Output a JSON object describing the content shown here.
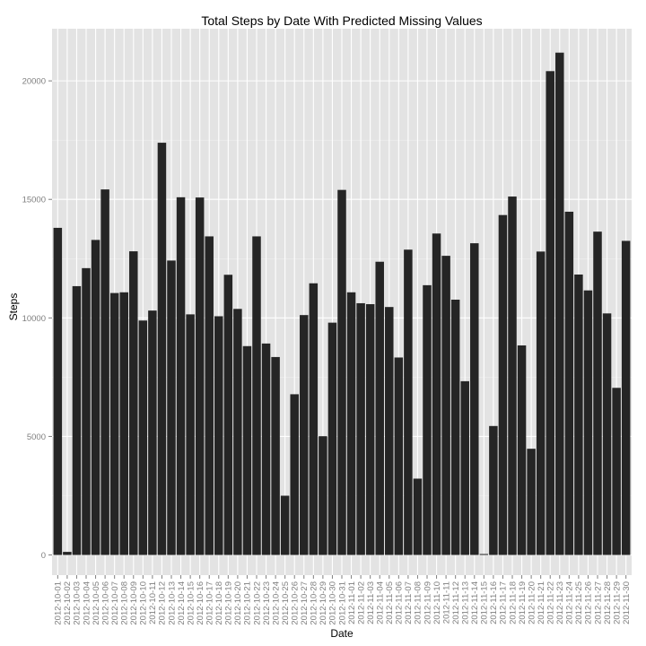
{
  "chart_data": {
    "type": "bar",
    "title": "Total Steps by Date With Predicted Missing Values",
    "xlabel": "Date",
    "ylabel": "Steps",
    "ylim": [
      -850,
      22200
    ],
    "yticks": [
      0,
      5000,
      10000,
      15000,
      20000
    ],
    "grid": true,
    "bar_color": "#252525",
    "panel_color": "#e3e3e3",
    "grid_color": "#ffffff",
    "categories": [
      "2012-10-01",
      "2012-10-02",
      "2012-10-03",
      "2012-10-04",
      "2012-10-05",
      "2012-10-06",
      "2012-10-07",
      "2012-10-08",
      "2012-10-09",
      "2012-10-10",
      "2012-10-11",
      "2012-10-12",
      "2012-10-13",
      "2012-10-14",
      "2012-10-15",
      "2012-10-16",
      "2012-10-17",
      "2012-10-18",
      "2012-10-19",
      "2012-10-20",
      "2012-10-21",
      "2012-10-22",
      "2012-10-23",
      "2012-10-24",
      "2012-10-25",
      "2012-10-26",
      "2012-10-27",
      "2012-10-28",
      "2012-10-29",
      "2012-10-30",
      "2012-10-31",
      "2012-11-01",
      "2012-11-02",
      "2012-11-03",
      "2012-11-04",
      "2012-11-05",
      "2012-11-06",
      "2012-11-07",
      "2012-11-08",
      "2012-11-09",
      "2012-11-10",
      "2012-11-11",
      "2012-11-12",
      "2012-11-13",
      "2012-11-14",
      "2012-11-15",
      "2012-11-16",
      "2012-11-17",
      "2012-11-18",
      "2012-11-19",
      "2012-11-20",
      "2012-11-21",
      "2012-11-22",
      "2012-11-23",
      "2012-11-24",
      "2012-11-25",
      "2012-11-26",
      "2012-11-27",
      "2012-11-28",
      "2012-11-29",
      "2012-11-30"
    ],
    "values": [
      13800,
      130,
      11340,
      12100,
      13290,
      15420,
      11050,
      11080,
      12810,
      9890,
      10310,
      17390,
      12420,
      15090,
      10150,
      15080,
      13440,
      10070,
      11820,
      10380,
      8810,
      13440,
      8920,
      8350,
      2500,
      6780,
      10120,
      11460,
      5010,
      9800,
      15400,
      11080,
      10620,
      10580,
      12370,
      10460,
      8330,
      12880,
      3220,
      11380,
      13560,
      12620,
      10770,
      7330,
      13150,
      40,
      5440,
      14340,
      15120,
      8840,
      4480,
      12800,
      20410,
      21190,
      14480,
      11830,
      11160,
      13640,
      10190,
      7050,
      13250
    ]
  }
}
